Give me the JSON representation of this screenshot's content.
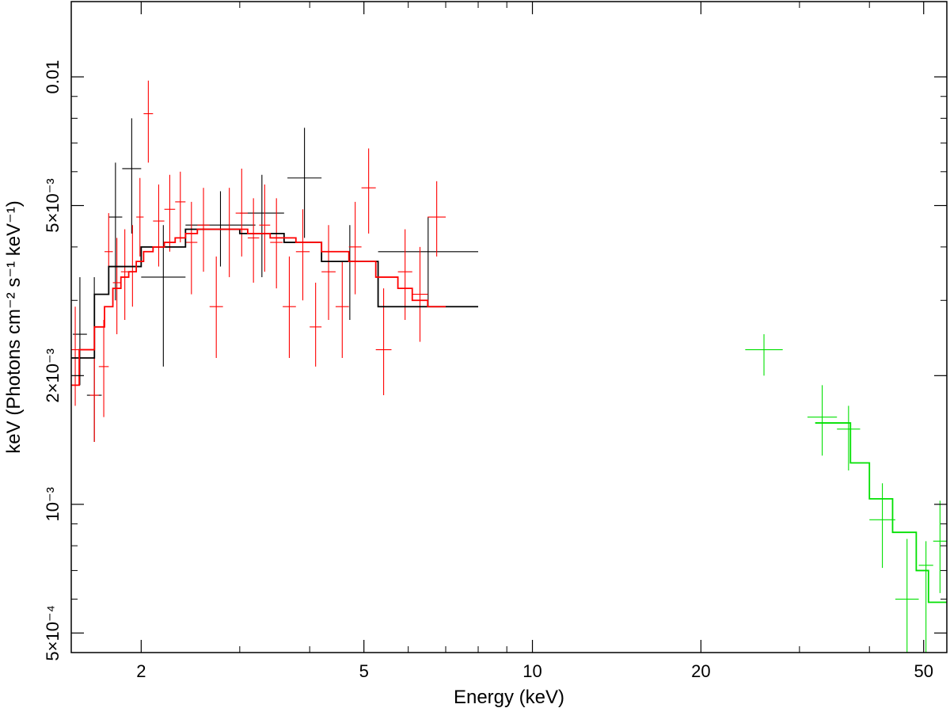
{
  "chart_data": {
    "type": "scatter",
    "title": "",
    "xlabel": "Energy (keV)",
    "ylabel": "keV (Photons cm⁻² s⁻¹ keV⁻¹)",
    "xscale": "log",
    "yscale": "log",
    "xlim": [
      1.5,
      55
    ],
    "ylim": [
      0.00045,
      0.015
    ],
    "grid": false,
    "legend": "none",
    "x_ticks": [
      {
        "value": 2,
        "label": "2"
      },
      {
        "value": 5,
        "label": "5"
      },
      {
        "value": 10,
        "label": "10"
      },
      {
        "value": 20,
        "label": "20"
      },
      {
        "value": 50,
        "label": "50"
      }
    ],
    "y_ticks": [
      {
        "value": 0.0005,
        "label": "5×10⁻⁴"
      },
      {
        "value": 0.001,
        "label": "10⁻³"
      },
      {
        "value": 0.002,
        "label": "2×10⁻³"
      },
      {
        "value": 0.005,
        "label": "5×10⁻³"
      },
      {
        "value": 0.01,
        "label": "0.01"
      }
    ],
    "series": [
      {
        "color": "#000000",
        "points": [
          [
            1.51,
            1.6,
            0.0025,
            0.0019,
            0.0034
          ],
          [
            1.6,
            1.7,
            0.0018,
            0.0014,
            0.0034
          ],
          [
            1.75,
            1.85,
            0.0047,
            0.003,
            0.0063
          ],
          [
            1.85,
            2.0,
            0.0061,
            0.0043,
            0.008
          ],
          [
            2.0,
            2.4,
            0.0034,
            0.0021,
            0.0045
          ],
          [
            2.4,
            3.2,
            0.0045,
            0.0036,
            0.0054
          ],
          [
            3.0,
            3.6,
            0.0048,
            0.0034,
            0.0059
          ],
          [
            3.65,
            4.2,
            0.0058,
            0.0042,
            0.0076
          ],
          [
            4.2,
            5.3,
            0.0037,
            0.0027,
            0.0045
          ],
          [
            5.3,
            8.0,
            0.0039,
            0.0029,
            0.0047
          ]
        ]
      },
      {
        "color": "#ff0000",
        "points": [
          [
            1.5,
            1.55,
            0.0023,
            0.0017,
            0.0029
          ],
          [
            1.62,
            1.68,
            0.0018,
            0.0014,
            0.0025
          ],
          [
            1.68,
            1.75,
            0.0021,
            0.0016,
            0.0027
          ],
          [
            1.72,
            1.78,
            0.0039,
            0.0031,
            0.0048
          ],
          [
            1.78,
            1.84,
            0.0033,
            0.0025,
            0.0042
          ],
          [
            1.84,
            1.9,
            0.0035,
            0.0027,
            0.0044
          ],
          [
            1.9,
            1.96,
            0.0036,
            0.0029,
            0.0045
          ],
          [
            1.96,
            2.02,
            0.0047,
            0.0038,
            0.0058
          ],
          [
            2.02,
            2.1,
            0.0082,
            0.0063,
            0.0098
          ],
          [
            2.1,
            2.2,
            0.0046,
            0.0036,
            0.0056
          ],
          [
            2.2,
            2.3,
            0.0049,
            0.0039,
            0.0059
          ],
          [
            2.3,
            2.4,
            0.0051,
            0.0041,
            0.006
          ],
          [
            2.4,
            2.52,
            0.0041,
            0.0031,
            0.0051
          ],
          [
            2.52,
            2.65,
            0.0045,
            0.0035,
            0.0055
          ],
          [
            2.65,
            2.8,
            0.0029,
            0.0022,
            0.0038
          ],
          [
            2.8,
            2.95,
            0.0044,
            0.0034,
            0.0055
          ],
          [
            2.95,
            3.1,
            0.0048,
            0.0038,
            0.0061
          ],
          [
            3.1,
            3.25,
            0.0042,
            0.0033,
            0.0052
          ],
          [
            3.25,
            3.4,
            0.0045,
            0.0035,
            0.0056
          ],
          [
            3.4,
            3.58,
            0.0041,
            0.0032,
            0.0052
          ],
          [
            3.58,
            3.78,
            0.0029,
            0.0022,
            0.0038
          ],
          [
            3.78,
            4.0,
            0.0039,
            0.003,
            0.0049
          ],
          [
            4.0,
            4.2,
            0.0026,
            0.0021,
            0.0033
          ],
          [
            4.2,
            4.45,
            0.0035,
            0.0027,
            0.0045
          ],
          [
            4.45,
            4.7,
            0.0029,
            0.0022,
            0.0037
          ],
          [
            4.7,
            4.95,
            0.004,
            0.0031,
            0.0051
          ],
          [
            4.95,
            5.25,
            0.0055,
            0.0043,
            0.0068
          ],
          [
            5.25,
            5.6,
            0.0023,
            0.0018,
            0.0032
          ],
          [
            5.75,
            6.1,
            0.0035,
            0.0027,
            0.0044
          ],
          [
            6.1,
            6.5,
            0.0031,
            0.0024,
            0.004
          ],
          [
            6.5,
            7.0,
            0.0047,
            0.0038,
            0.0057
          ]
        ]
      },
      {
        "color": "#00e000",
        "points": [
          [
            24.0,
            28.0,
            0.0023,
            0.002,
            0.0025
          ],
          [
            31.0,
            35.0,
            0.0016,
            0.0013,
            0.0019
          ],
          [
            35.0,
            38.5,
            0.0015,
            0.0012,
            0.0017
          ],
          [
            40.0,
            44.5,
            0.00092,
            0.00071,
            0.00112
          ],
          [
            44.5,
            49.0,
            0.0006,
            0.00042,
            0.00083
          ],
          [
            49.0,
            52.0,
            0.00072,
            0.00042,
            0.00082
          ],
          [
            52.0,
            55.0,
            0.00082,
            0.00062,
            0.00102
          ]
        ]
      }
    ],
    "models": [
      {
        "color": "#000000",
        "bins": [
          [
            1.5,
            1.65,
            0.0022
          ],
          [
            1.65,
            1.75,
            0.0031
          ],
          [
            1.75,
            2.0,
            0.0036
          ],
          [
            2.0,
            2.4,
            0.004
          ],
          [
            2.4,
            3.0,
            0.0044
          ],
          [
            3.0,
            3.6,
            0.0043
          ],
          [
            3.6,
            4.2,
            0.0041
          ],
          [
            4.2,
            5.3,
            0.0037
          ],
          [
            5.3,
            8.0,
            0.0029
          ]
        ]
      },
      {
        "color": "#ff0000",
        "bins": [
          [
            1.5,
            1.55,
            0.0019
          ],
          [
            1.55,
            1.65,
            0.0023
          ],
          [
            1.65,
            1.72,
            0.0026
          ],
          [
            1.72,
            1.78,
            0.0029
          ],
          [
            1.78,
            1.84,
            0.0032
          ],
          [
            1.84,
            1.9,
            0.0034
          ],
          [
            1.9,
            1.96,
            0.0035
          ],
          [
            1.96,
            2.02,
            0.0037
          ],
          [
            2.02,
            2.1,
            0.0039
          ],
          [
            2.1,
            2.2,
            0.004
          ],
          [
            2.2,
            2.3,
            0.0041
          ],
          [
            2.3,
            2.4,
            0.0042
          ],
          [
            2.4,
            2.52,
            0.0043
          ],
          [
            2.52,
            2.65,
            0.0044
          ],
          [
            2.65,
            2.8,
            0.0044
          ],
          [
            2.8,
            3.1,
            0.0044
          ],
          [
            3.1,
            3.4,
            0.0043
          ],
          [
            3.4,
            3.78,
            0.0042
          ],
          [
            3.78,
            4.2,
            0.0041
          ],
          [
            4.2,
            4.7,
            0.0039
          ],
          [
            4.7,
            5.25,
            0.0037
          ],
          [
            5.25,
            5.75,
            0.0034
          ],
          [
            5.75,
            6.1,
            0.0032
          ],
          [
            6.1,
            6.5,
            0.003
          ],
          [
            6.5,
            7.0,
            0.0029
          ]
        ]
      },
      {
        "color": "#00e000",
        "bins": [
          [
            32.0,
            37.0,
            0.00155
          ],
          [
            37.0,
            40.0,
            0.00125
          ],
          [
            40.0,
            44.0,
            0.00103
          ],
          [
            44.0,
            48.5,
            0.00086
          ],
          [
            48.5,
            51.0,
            0.0007
          ],
          [
            51.0,
            55.0,
            0.00059
          ]
        ]
      }
    ]
  }
}
